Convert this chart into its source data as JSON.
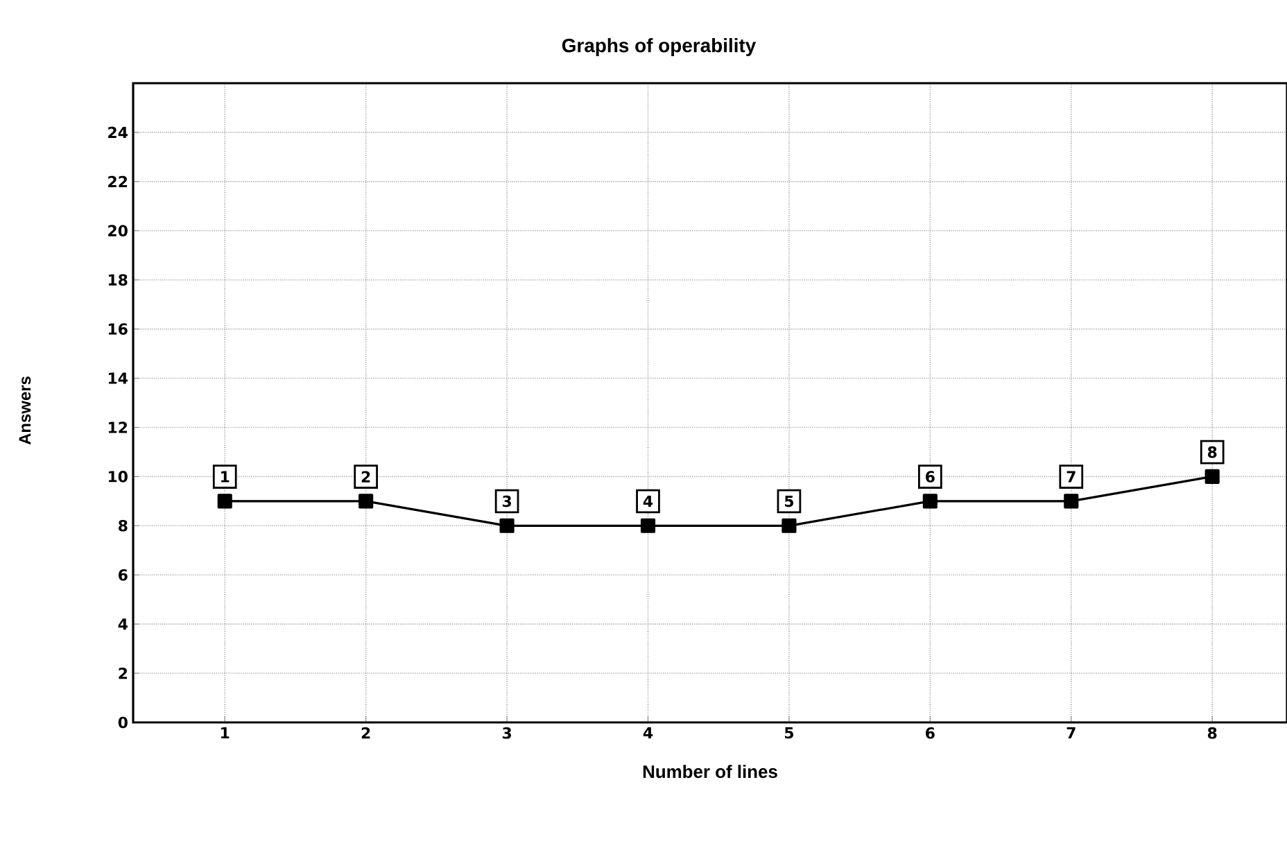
{
  "chart_data": {
    "type": "line",
    "title": "Graphs of operability",
    "xlabel": "Number of lines",
    "ylabel": "Answers",
    "x": [
      1,
      2,
      3,
      4,
      5,
      6,
      7,
      8
    ],
    "series": [
      {
        "color": "#000000",
        "values": [
          9,
          9,
          8,
          8,
          8,
          9,
          9,
          10
        ]
      }
    ],
    "xlim": [
      0.35,
      8.53
    ],
    "ylim": [
      0,
      26
    ],
    "xticks": [
      1,
      2,
      3,
      4,
      5,
      6,
      7,
      8
    ],
    "yticks": [
      0,
      2,
      4,
      6,
      8,
      10,
      12,
      14,
      16,
      18,
      20,
      22,
      24
    ],
    "grid": true,
    "marker": "square",
    "line_style": "solid",
    "annotations": [
      {
        "text": "1",
        "x": 1,
        "y": 9
      },
      {
        "text": "2",
        "x": 2,
        "y": 9
      },
      {
        "text": "3",
        "x": 3,
        "y": 8
      },
      {
        "text": "4",
        "x": 4,
        "y": 8
      },
      {
        "text": "5",
        "x": 5,
        "y": 8
      },
      {
        "text": "6",
        "x": 6,
        "y": 9
      },
      {
        "text": "7",
        "x": 7,
        "y": 9
      },
      {
        "text": "8",
        "x": 8,
        "y": 10
      }
    ]
  }
}
